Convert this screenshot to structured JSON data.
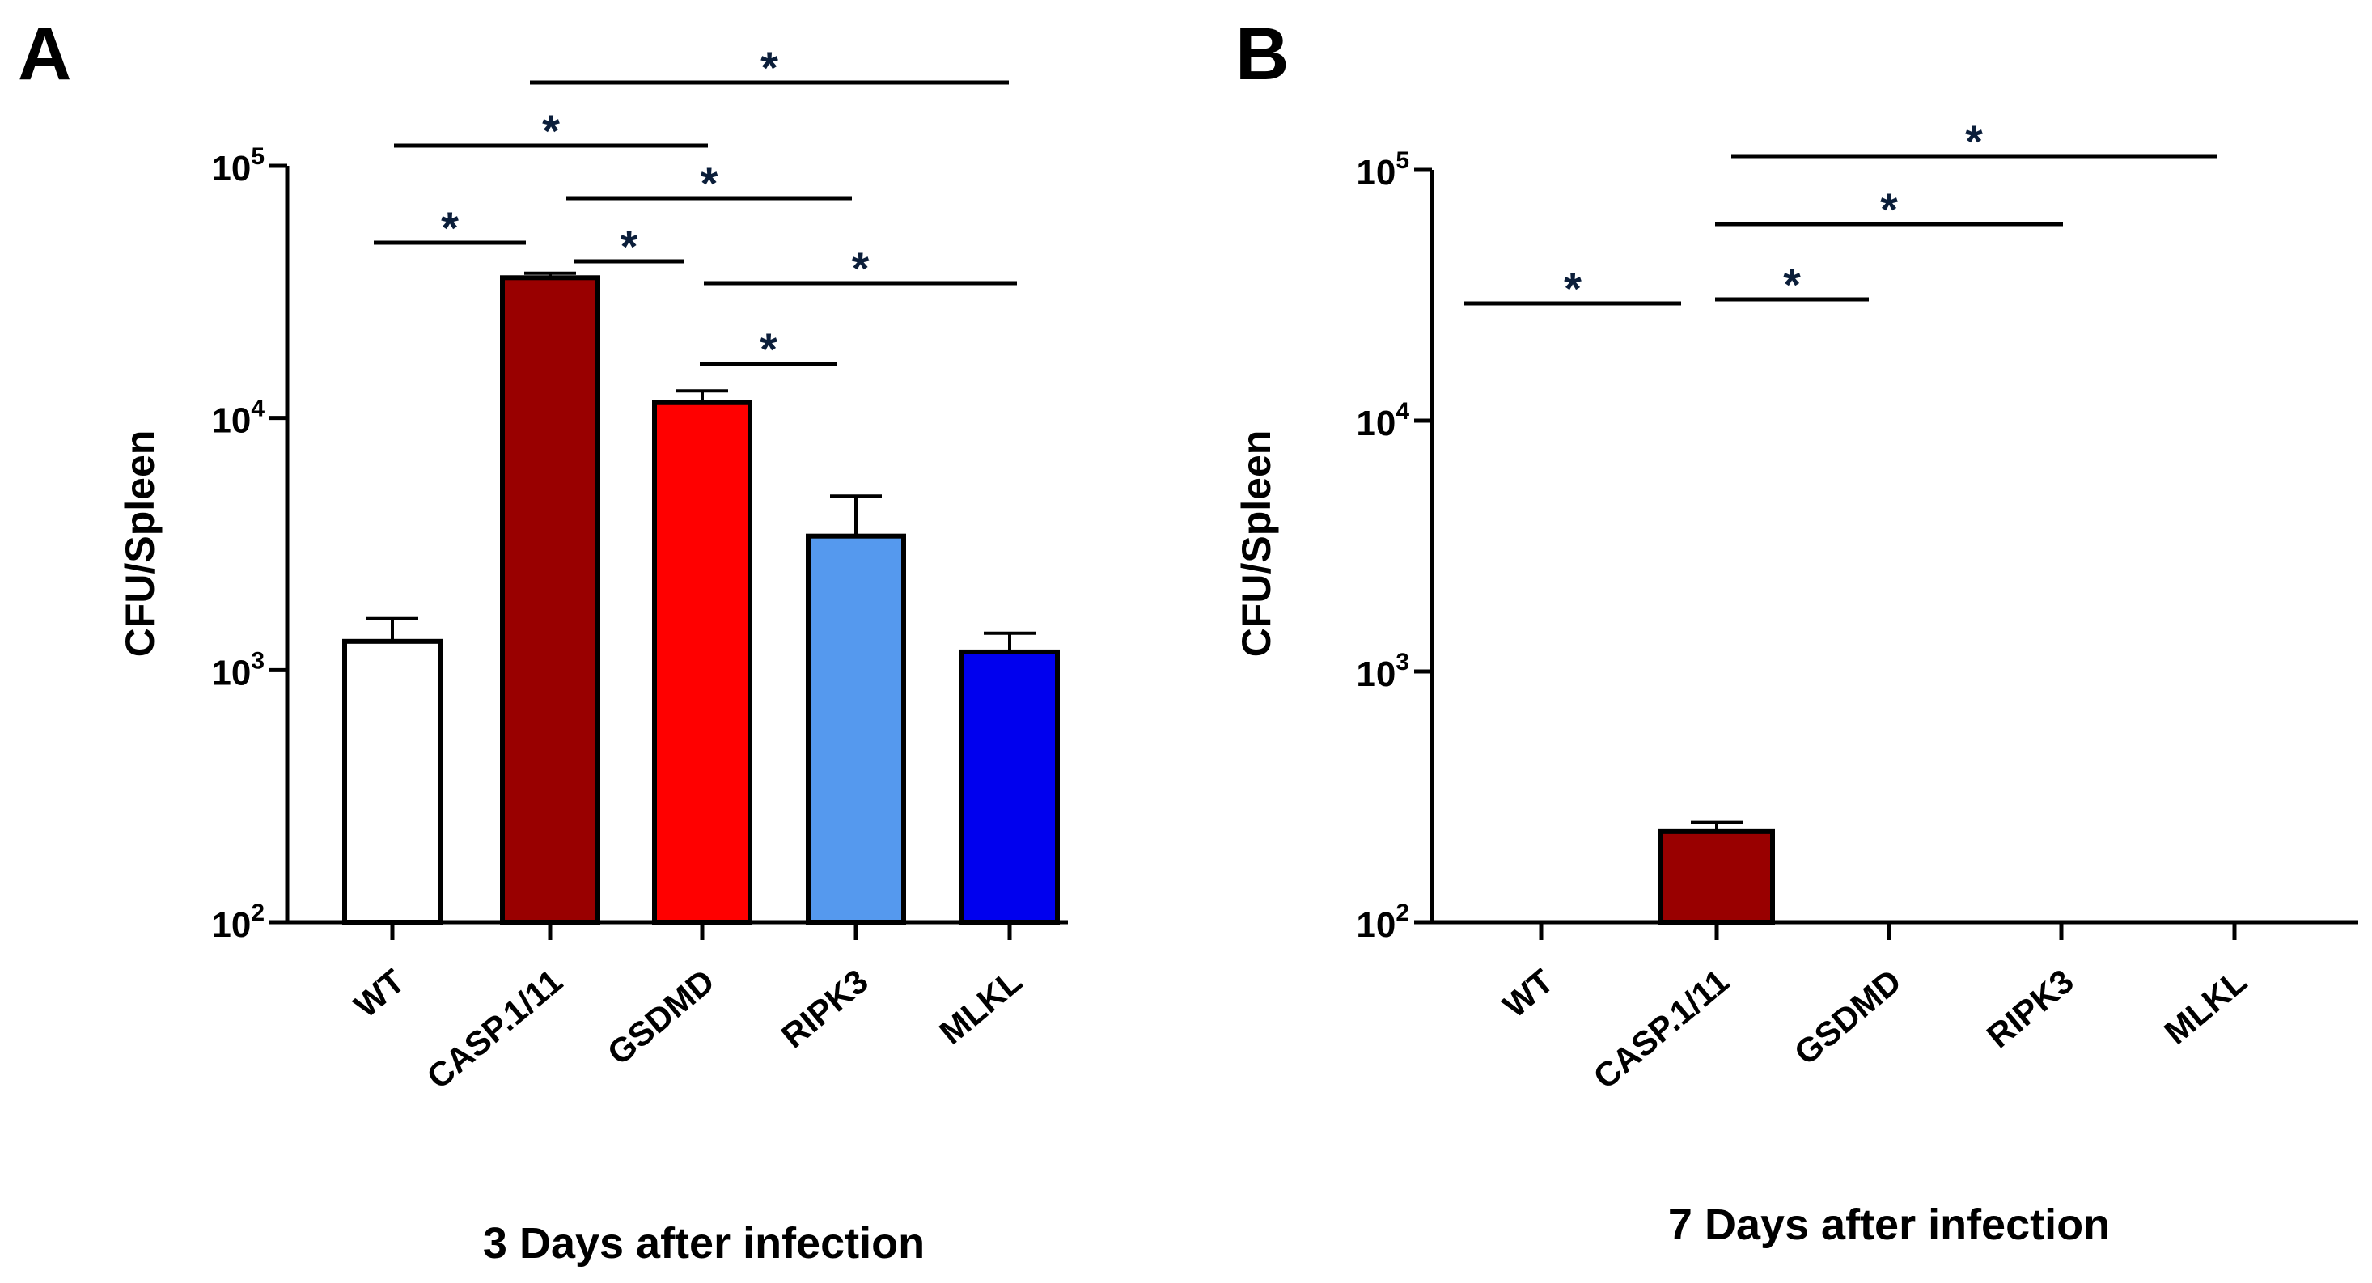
{
  "chart_data": [
    {
      "panel_label": "A",
      "type": "bar",
      "y_scale": "log",
      "ylim": [
        100,
        100000
      ],
      "ylabel": "CFU/Spleen",
      "xlabel": "3 Days after infection",
      "y_ticks": [
        {
          "value": 100,
          "base": "10",
          "exp": "2"
        },
        {
          "value": 1000,
          "base": "10",
          "exp": "3"
        },
        {
          "value": 10000,
          "base": "10",
          "exp": "4"
        },
        {
          "value": 100000,
          "base": "10",
          "exp": "5"
        }
      ],
      "categories": [
        "WT",
        "CASP.1/11",
        "GSDMD",
        "RIPK3",
        "MLKL"
      ],
      "values": [
        1300,
        36000,
        11500,
        3400,
        1180
      ],
      "error_upper": [
        1600,
        37500,
        12800,
        4900,
        1400
      ],
      "colors": [
        "#ffffff",
        "#990000",
        "#ff0000",
        "#5599ee",
        "#0000ee"
      ],
      "significance": [
        {
          "from": 0,
          "to": 1,
          "label": "*"
        },
        {
          "from": 1,
          "to": 2,
          "label": "*"
        },
        {
          "from": 2,
          "to": 3,
          "label": "*"
        },
        {
          "from": 2,
          "to": 4,
          "label": "*"
        },
        {
          "from": 1,
          "to": 3,
          "label": "*"
        },
        {
          "from": 0,
          "to": 2,
          "label": "*"
        },
        {
          "from": 1,
          "to": 4,
          "label": "*"
        }
      ]
    },
    {
      "panel_label": "B",
      "type": "bar",
      "y_scale": "log",
      "ylim": [
        100,
        100000
      ],
      "ylabel": "CFU/Spleen",
      "xlabel": "7 Days after infection",
      "y_ticks": [
        {
          "value": 100,
          "base": "10",
          "exp": "2"
        },
        {
          "value": 1000,
          "base": "10",
          "exp": "3"
        },
        {
          "value": 10000,
          "base": "10",
          "exp": "4"
        },
        {
          "value": 100000,
          "base": "10",
          "exp": "5"
        }
      ],
      "categories": [
        "WT",
        "CASP.1/11",
        "GSDMD",
        "RIPK3",
        "MLKL"
      ],
      "values": [
        null,
        230,
        null,
        null,
        null
      ],
      "error_upper": [
        null,
        250,
        null,
        null,
        null
      ],
      "colors": [
        "#ffffff",
        "#990000",
        "#ff0000",
        "#5599ee",
        "#0000ee"
      ],
      "significance": [
        {
          "from": 0,
          "to": 1,
          "label": "*"
        },
        {
          "from": 1,
          "to": 2,
          "label": "*"
        },
        {
          "from": 1,
          "to": 3,
          "label": "*"
        },
        {
          "from": 1,
          "to": 4,
          "label": "*"
        }
      ]
    }
  ]
}
